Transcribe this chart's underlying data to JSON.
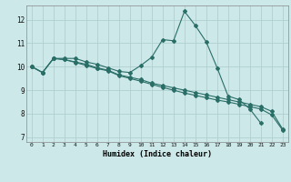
{
  "xlabel": "Humidex (Indice chaleur)",
  "background_color": "#cce8e8",
  "grid_color": "#aacccc",
  "line_color": "#2a6e68",
  "x_ticks": [
    0,
    1,
    2,
    3,
    4,
    5,
    6,
    7,
    8,
    9,
    10,
    11,
    12,
    13,
    14,
    15,
    16,
    17,
    18,
    19,
    20,
    21,
    22,
    23
  ],
  "y_ticks": [
    7,
    8,
    9,
    10,
    11,
    12
  ],
  "ylim": [
    6.8,
    12.6
  ],
  "xlim": [
    -0.5,
    23.5
  ],
  "series": [
    {
      "x": [
        0,
        1,
        2,
        3,
        4,
        5,
        6,
        7,
        8,
        9,
        10,
        11,
        12,
        13,
        14,
        15,
        16,
        17,
        18,
        19,
        20,
        21
      ],
      "y": [
        10.0,
        9.75,
        10.35,
        10.35,
        10.35,
        10.2,
        10.1,
        9.95,
        9.8,
        9.75,
        10.05,
        10.4,
        11.15,
        11.1,
        12.35,
        11.75,
        11.05,
        9.95,
        8.75,
        8.6,
        8.2,
        7.6
      ],
      "marker": "D",
      "markersize": 2.0,
      "linewidth": 0.8
    },
    {
      "x": [
        0,
        1,
        2,
        3,
        4,
        5,
        6,
        7,
        8,
        9,
        10,
        11,
        12,
        13,
        14,
        15,
        16,
        17,
        18,
        19,
        20,
        21,
        22,
        23
      ],
      "y": [
        10.0,
        9.75,
        10.35,
        10.3,
        10.2,
        10.1,
        9.95,
        9.85,
        9.65,
        9.55,
        9.45,
        9.3,
        9.2,
        9.1,
        9.0,
        8.9,
        8.8,
        8.7,
        8.6,
        8.5,
        8.4,
        8.3,
        8.1,
        7.35
      ],
      "marker": "D",
      "markersize": 2.0,
      "linewidth": 0.8
    },
    {
      "x": [
        0,
        1,
        2,
        3,
        4,
        5,
        6,
        7,
        8,
        9,
        10,
        11,
        12,
        13,
        14,
        15,
        16,
        17,
        18,
        19,
        20,
        21,
        22,
        23
      ],
      "y": [
        10.0,
        9.75,
        10.35,
        10.3,
        10.18,
        10.05,
        9.92,
        9.82,
        9.62,
        9.5,
        9.38,
        9.25,
        9.12,
        9.0,
        8.88,
        8.78,
        8.68,
        8.58,
        8.5,
        8.4,
        8.3,
        8.2,
        7.95,
        7.3
      ],
      "marker": "D",
      "markersize": 2.0,
      "linewidth": 0.8
    }
  ]
}
